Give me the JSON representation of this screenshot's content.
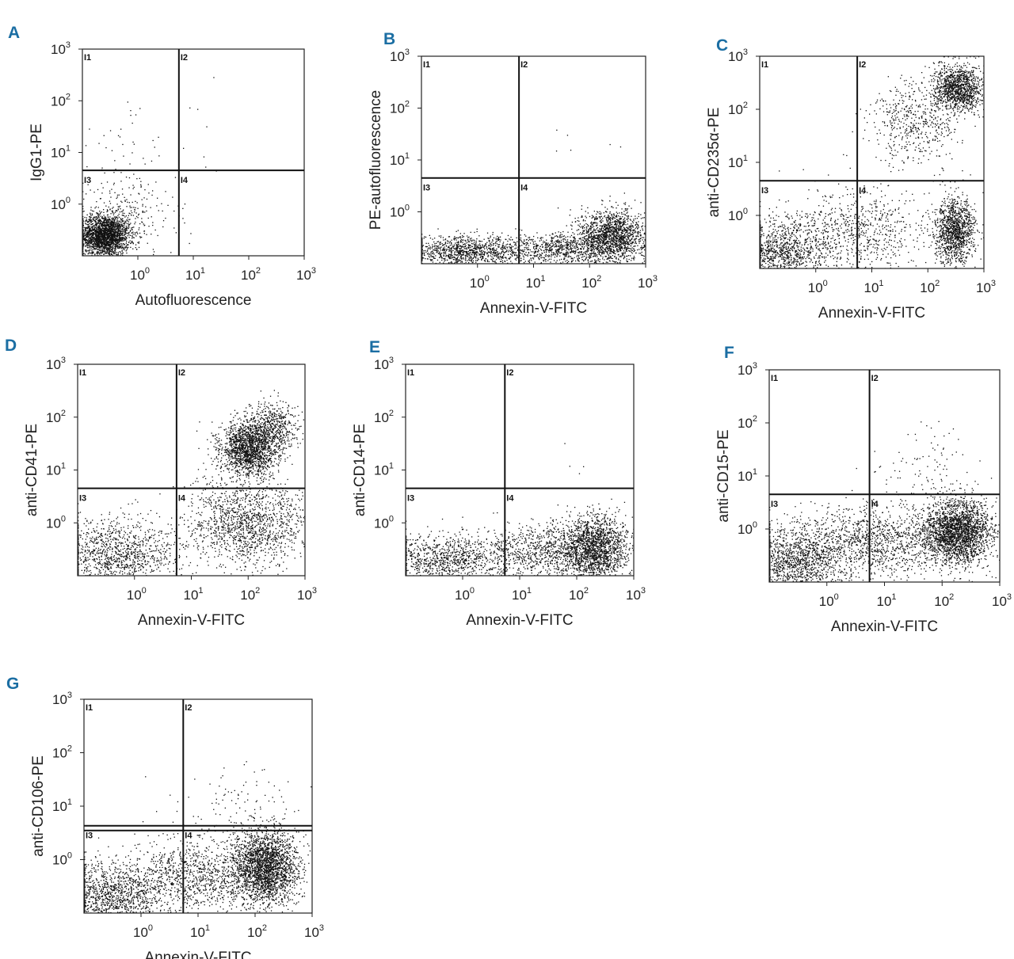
{
  "chart_data": [
    {
      "type": "scatter",
      "panel": "A",
      "xlabel": "Autofluorescence",
      "ylabel": "IgG1-PE",
      "x_ticks": [
        "10",
        "10",
        "10",
        "10"
      ],
      "x_tick_exponents": [
        "0",
        "1",
        "2",
        "3"
      ],
      "y_ticks": [
        "10",
        "10",
        "10",
        "10"
      ],
      "y_tick_exponents": [
        "0",
        "1",
        "2",
        "3"
      ],
      "scale": "log",
      "xlim": [
        0.1,
        1000
      ],
      "ylim": [
        0.1,
        1000
      ],
      "x_gate": 5.5,
      "y_gate": 4.5,
      "quadrant_labels": [
        "I1",
        "I2",
        "I3",
        "I4"
      ],
      "populations": [
        {
          "name": "I3 cluster",
          "x": 0.25,
          "y": 0.25,
          "spread_x": 0.22,
          "spread_y": 0.2,
          "n": 2200
        },
        {
          "name": "I3 halo",
          "x": 0.6,
          "y": 0.6,
          "spread_x": 0.45,
          "spread_y": 0.4,
          "n": 280
        },
        {
          "name": "I1 sparse",
          "x": 0.4,
          "y": 10,
          "spread_x": 0.4,
          "spread_y": 0.5,
          "n": 40
        },
        {
          "name": "I2 sparse",
          "x": 15,
          "y": 15,
          "spread_x": 0.3,
          "spread_y": 0.6,
          "n": 6
        }
      ]
    },
    {
      "type": "scatter",
      "panel": "B",
      "xlabel": "Annexin-V-FITC",
      "ylabel": "PE-autofluorescence",
      "x_ticks": [
        "10",
        "10",
        "10",
        "10"
      ],
      "x_tick_exponents": [
        "0",
        "1",
        "2",
        "3"
      ],
      "y_ticks": [
        "10",
        "10",
        "10",
        "10"
      ],
      "y_tick_exponents": [
        "0",
        "1",
        "2",
        "3"
      ],
      "scale": "log",
      "xlim": [
        0.1,
        1000
      ],
      "ylim": [
        0.1,
        1000
      ],
      "x_gate": 5.5,
      "y_gate": 4.5,
      "quadrant_labels": [
        "I1",
        "I2",
        "I3",
        "I4"
      ],
      "populations": [
        {
          "name": "I3 band",
          "x": 0.6,
          "y": 0.17,
          "spread_x": 0.55,
          "spread_y": 0.15,
          "n": 1100
        },
        {
          "name": "I4 cluster",
          "x": 250,
          "y": 0.35,
          "spread_x": 0.3,
          "spread_y": 0.25,
          "n": 1500
        },
        {
          "name": "I4 band",
          "x": 30,
          "y": 0.2,
          "spread_x": 0.55,
          "spread_y": 0.15,
          "n": 800
        },
        {
          "name": "upper sparse",
          "x": 100,
          "y": 15,
          "spread_x": 0.5,
          "spread_y": 0.4,
          "n": 6
        }
      ]
    },
    {
      "type": "scatter",
      "panel": "C",
      "xlabel": "Annexin-V-FITC",
      "ylabel": "anti-CD235α-PE",
      "x_ticks": [
        "10",
        "10",
        "10",
        "10"
      ],
      "x_tick_exponents": [
        "0",
        "1",
        "2",
        "3"
      ],
      "y_ticks": [
        "10",
        "10",
        "10",
        "10"
      ],
      "y_tick_exponents": [
        "0",
        "1",
        "2",
        "3"
      ],
      "scale": "log",
      "xlim": [
        0.1,
        1000
      ],
      "ylim": [
        0.1,
        1000
      ],
      "x_gate": 5.5,
      "y_gate": 4.5,
      "quadrant_labels": [
        "I1",
        "I2",
        "I3",
        "I4"
      ],
      "populations": [
        {
          "name": "I2 cluster",
          "x": 350,
          "y": 250,
          "spread_x": 0.22,
          "spread_y": 0.22,
          "n": 1200
        },
        {
          "name": "I2 tail",
          "x": 60,
          "y": 60,
          "spread_x": 0.4,
          "spread_y": 0.4,
          "n": 500
        },
        {
          "name": "I4 cluster",
          "x": 300,
          "y": 0.5,
          "spread_x": 0.18,
          "spread_y": 0.3,
          "n": 1200
        },
        {
          "name": "I3 cluster",
          "x": 0.25,
          "y": 0.2,
          "spread_x": 0.4,
          "spread_y": 0.3,
          "n": 1000
        },
        {
          "name": "I3/I4 band",
          "x": 5,
          "y": 0.5,
          "spread_x": 0.7,
          "spread_y": 0.4,
          "n": 800
        }
      ]
    },
    {
      "type": "scatter",
      "panel": "D",
      "xlabel": "Annexin-V-FITC",
      "ylabel": "anti-CD41-PE",
      "x_ticks": [
        "10",
        "10",
        "10",
        "10"
      ],
      "x_tick_exponents": [
        "0",
        "1",
        "2",
        "3"
      ],
      "y_ticks": [
        "10",
        "10",
        "10",
        "10"
      ],
      "y_tick_exponents": [
        "0",
        "1",
        "2",
        "3"
      ],
      "scale": "log",
      "xlim": [
        0.1,
        1000
      ],
      "ylim": [
        0.1,
        1000
      ],
      "x_gate": 5.5,
      "y_gate": 4.5,
      "quadrant_labels": [
        "I1",
        "I2",
        "I3",
        "I4"
      ],
      "populations": [
        {
          "name": "I2 cluster",
          "x": 100,
          "y": 25,
          "spread_x": 0.25,
          "spread_y": 0.25,
          "n": 1600
        },
        {
          "name": "I2 diagonal",
          "x": 250,
          "y": 60,
          "spread_x": 0.25,
          "spread_y": 0.25,
          "n": 600
        },
        {
          "name": "I4 spread",
          "x": 100,
          "y": 1,
          "spread_x": 0.55,
          "spread_y": 0.4,
          "n": 1400
        },
        {
          "name": "I3 band",
          "x": 0.5,
          "y": 0.25,
          "spread_x": 0.55,
          "spread_y": 0.35,
          "n": 1200
        }
      ]
    },
    {
      "type": "scatter",
      "panel": "E",
      "xlabel": "Annexin-V-FITC",
      "ylabel": "anti-CD14-PE",
      "x_ticks": [
        "10",
        "10",
        "10",
        "10"
      ],
      "x_tick_exponents": [
        "0",
        "1",
        "2",
        "3"
      ],
      "y_ticks": [
        "10",
        "10",
        "10",
        "10"
      ],
      "y_tick_exponents": [
        "0",
        "1",
        "2",
        "3"
      ],
      "scale": "log",
      "xlim": [
        0.1,
        1000
      ],
      "ylim": [
        0.1,
        1000
      ],
      "x_gate": 5.5,
      "y_gate": 4.5,
      "quadrant_labels": [
        "I1",
        "I2",
        "I3",
        "I4"
      ],
      "populations": [
        {
          "name": "I4 cluster",
          "x": 200,
          "y": 0.35,
          "spread_x": 0.3,
          "spread_y": 0.3,
          "n": 1700
        },
        {
          "name": "I4 band",
          "x": 30,
          "y": 0.25,
          "spread_x": 0.55,
          "spread_y": 0.3,
          "n": 900
        },
        {
          "name": "I3 band",
          "x": 0.5,
          "y": 0.2,
          "spread_x": 0.55,
          "spread_y": 0.25,
          "n": 1000
        },
        {
          "name": "upper sparse",
          "x": 80,
          "y": 10,
          "spread_x": 0.5,
          "spread_y": 0.3,
          "n": 5
        }
      ]
    },
    {
      "type": "scatter",
      "panel": "F",
      "xlabel": "Annexin-V-FITC",
      "ylabel": "anti-CD15-PE",
      "x_ticks": [
        "10",
        "10",
        "10",
        "10"
      ],
      "x_tick_exponents": [
        "0",
        "1",
        "2",
        "3"
      ],
      "y_ticks": [
        "10",
        "10",
        "10",
        "10"
      ],
      "y_tick_exponents": [
        "0",
        "1",
        "2",
        "3"
      ],
      "scale": "log",
      "xlim": [
        0.1,
        1000
      ],
      "ylim": [
        0.1,
        1000
      ],
      "x_gate": 5.5,
      "y_gate": 4.5,
      "quadrant_labels": [
        "I1",
        "I2",
        "I3",
        "I4"
      ],
      "populations": [
        {
          "name": "I4 cluster",
          "x": 180,
          "y": 0.9,
          "spread_x": 0.3,
          "spread_y": 0.3,
          "n": 2400
        },
        {
          "name": "I3 cluster",
          "x": 0.3,
          "y": 0.25,
          "spread_x": 0.45,
          "spread_y": 0.35,
          "n": 1400
        },
        {
          "name": "middle band",
          "x": 8,
          "y": 0.6,
          "spread_x": 0.6,
          "spread_y": 0.35,
          "n": 1100
        },
        {
          "name": "upper sparse",
          "x": 60,
          "y": 12,
          "spread_x": 0.5,
          "spread_y": 0.35,
          "n": 90
        }
      ]
    },
    {
      "type": "scatter",
      "panel": "G",
      "xlabel": "Annexin-V-FITC",
      "ylabel": "anti-CD106-PE",
      "x_ticks": [
        "10",
        "10",
        "10",
        "10"
      ],
      "x_tick_exponents": [
        "0",
        "1",
        "2",
        "3"
      ],
      "y_ticks": [
        "10",
        "10",
        "10",
        "10"
      ],
      "y_tick_exponents": [
        "0",
        "1",
        "2",
        "3"
      ],
      "scale": "log",
      "xlim": [
        0.1,
        1000
      ],
      "ylim": [
        0.1,
        1000
      ],
      "x_gate": 5.5,
      "y_gate": [
        3.5,
        4.3
      ],
      "quadrant_labels": [
        "I1",
        "I2",
        "I3",
        "I4"
      ],
      "populations": [
        {
          "name": "I4 cluster",
          "x": 150,
          "y": 0.7,
          "spread_x": 0.3,
          "spread_y": 0.35,
          "n": 2400
        },
        {
          "name": "I3 cluster",
          "x": 0.3,
          "y": 0.2,
          "spread_x": 0.45,
          "spread_y": 0.35,
          "n": 1300
        },
        {
          "name": "middle band",
          "x": 8,
          "y": 0.5,
          "spread_x": 0.6,
          "spread_y": 0.35,
          "n": 1000
        },
        {
          "name": "upper sparse",
          "x": 60,
          "y": 12,
          "spread_x": 0.5,
          "spread_y": 0.35,
          "n": 90
        }
      ]
    }
  ]
}
